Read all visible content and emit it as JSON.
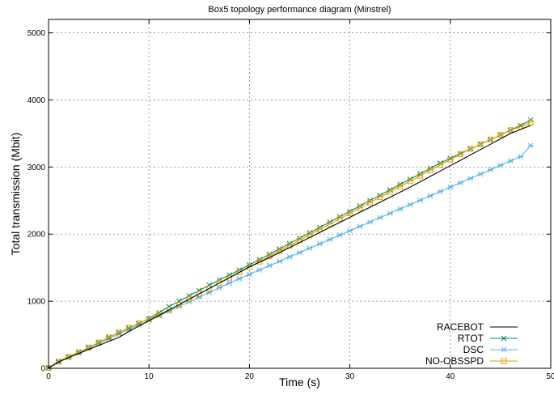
{
  "chart_data": {
    "type": "line",
    "title": "Box5 topology performance diagram (Minstrel)",
    "xlabel": "Time (s)",
    "ylabel": "Total transmission  (Mbit)",
    "xlim": [
      0,
      50
    ],
    "ylim": [
      0,
      5200
    ],
    "xticks": [
      0,
      10,
      20,
      30,
      40,
      50
    ],
    "xtick_labels": [
      "0",
      "10",
      "20",
      "30",
      "40",
      "50"
    ],
    "yticks": [
      0,
      1000,
      2000,
      3000,
      4000,
      5000
    ],
    "ytick_labels": [
      "0",
      "1000",
      "2000",
      "3000",
      "4000",
      "5000"
    ],
    "grid": true,
    "legend_position": "bottom-right",
    "series": [
      {
        "name": "RACEBOT",
        "color": "#000000",
        "marker": "none",
        "x": [
          0,
          1,
          2,
          3,
          4,
          5,
          6,
          7,
          8,
          9,
          10,
          11,
          12,
          13,
          14,
          15,
          16,
          17,
          18,
          19,
          20,
          21,
          22,
          23,
          24,
          25,
          26,
          27,
          28,
          29,
          30,
          31,
          32,
          33,
          34,
          35,
          36,
          37,
          38,
          39,
          40,
          41,
          42,
          43,
          44,
          45,
          46,
          47,
          48
        ],
        "y": [
          5,
          95,
          160,
          220,
          280,
          340,
          400,
          460,
          550,
          630,
          710,
          790,
          870,
          950,
          1030,
          1110,
          1190,
          1270,
          1350,
          1430,
          1510,
          1580,
          1650,
          1725,
          1800,
          1875,
          1950,
          2025,
          2100,
          2175,
          2250,
          2325,
          2400,
          2475,
          2550,
          2625,
          2700,
          2780,
          2860,
          2940,
          3020,
          3100,
          3180,
          3260,
          3340,
          3420,
          3500,
          3560,
          3620
        ]
      },
      {
        "name": "RTOT",
        "color": "#008a5e",
        "marker": "x",
        "x": [
          0,
          1,
          2,
          3,
          4,
          5,
          6,
          7,
          8,
          9,
          10,
          11,
          12,
          13,
          14,
          15,
          16,
          17,
          18,
          19,
          20,
          21,
          22,
          23,
          24,
          25,
          26,
          27,
          28,
          29,
          30,
          31,
          32,
          33,
          34,
          35,
          36,
          37,
          38,
          39,
          40,
          41,
          42,
          43,
          44,
          45,
          46,
          47,
          48
        ],
        "y": [
          5,
          100,
          170,
          240,
          310,
          385,
          460,
          535,
          600,
          670,
          740,
          830,
          920,
          1000,
          1080,
          1160,
          1240,
          1315,
          1390,
          1465,
          1540,
          1620,
          1700,
          1780,
          1860,
          1940,
          2020,
          2100,
          2180,
          2260,
          2340,
          2420,
          2500,
          2580,
          2660,
          2740,
          2820,
          2900,
          2980,
          3060,
          3130,
          3200,
          3270,
          3340,
          3410,
          3480,
          3550,
          3620,
          3700
        ]
      },
      {
        "name": "DSC",
        "color": "#56b4e9",
        "marker": "*",
        "x": [
          0,
          1,
          2,
          3,
          4,
          5,
          6,
          7,
          8,
          9,
          10,
          11,
          12,
          13,
          14,
          15,
          16,
          17,
          18,
          19,
          20,
          21,
          22,
          23,
          24,
          25,
          26,
          27,
          28,
          29,
          30,
          31,
          32,
          33,
          34,
          35,
          36,
          37,
          38,
          39,
          40,
          41,
          42,
          43,
          44,
          45,
          46,
          47,
          48
        ],
        "y": [
          5,
          90,
          160,
          230,
          300,
          370,
          440,
          510,
          580,
          645,
          710,
          780,
          850,
          920,
          990,
          1060,
          1130,
          1200,
          1270,
          1335,
          1400,
          1465,
          1530,
          1595,
          1660,
          1725,
          1790,
          1855,
          1920,
          1985,
          2050,
          2115,
          2180,
          2245,
          2310,
          2375,
          2440,
          2505,
          2570,
          2635,
          2700,
          2765,
          2830,
          2895,
          2960,
          3025,
          3090,
          3155,
          3320
        ]
      },
      {
        "name": "NO-OBSSPD",
        "color": "#e69f00",
        "marker": "square",
        "x": [
          0,
          1,
          2,
          3,
          4,
          5,
          6,
          7,
          8,
          9,
          10,
          11,
          12,
          13,
          14,
          15,
          16,
          17,
          18,
          19,
          20,
          21,
          22,
          23,
          24,
          25,
          26,
          27,
          28,
          29,
          30,
          31,
          32,
          33,
          34,
          35,
          36,
          37,
          38,
          39,
          40,
          41,
          42,
          43,
          44,
          45,
          46,
          47,
          48
        ],
        "y": [
          5,
          100,
          170,
          240,
          310,
          385,
          460,
          535,
          605,
          670,
          735,
          800,
          870,
          950,
          1030,
          1110,
          1190,
          1270,
          1350,
          1430,
          1510,
          1590,
          1670,
          1750,
          1830,
          1910,
          1990,
          2070,
          2150,
          2230,
          2310,
          2390,
          2470,
          2550,
          2630,
          2710,
          2790,
          2870,
          2950,
          3030,
          3110,
          3190,
          3270,
          3340,
          3410,
          3480,
          3550,
          3600,
          3660
        ]
      }
    ]
  }
}
